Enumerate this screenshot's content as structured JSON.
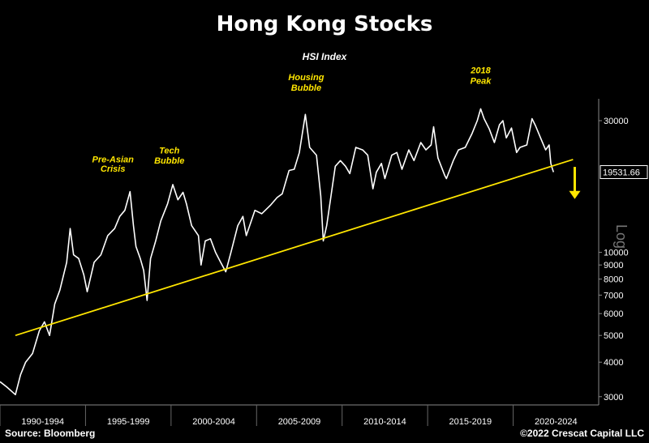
{
  "chart_data": {
    "type": "line",
    "title": "Hong Kong Stocks",
    "subtitle": "HSI Index",
    "scale": "log",
    "ylabel": "Log",
    "ylim": [
      2800,
      36000
    ],
    "xlim": [
      1990.0,
      2025.0
    ],
    "y_ticks": [
      3000,
      4000,
      5000,
      6000,
      7000,
      8000,
      9000,
      10000,
      30000
    ],
    "x_tick_labels": [
      "1990-1994",
      "1995-1999",
      "2000-2004",
      "2005-2009",
      "2010-2014",
      "2015-2019",
      "2020-2024"
    ],
    "x_tick_starts": [
      1990,
      1995,
      2000,
      2005,
      2010,
      2015,
      2020
    ],
    "last_value_label": "19531.66",
    "last_value": 19531.66,
    "series": [
      {
        "values": [
          [
            1990.0,
            3400
          ],
          [
            1990.4,
            3250
          ],
          [
            1990.9,
            3050
          ],
          [
            1991.2,
            3600
          ],
          [
            1991.5,
            4000
          ],
          [
            1991.9,
            4300
          ],
          [
            1992.3,
            5200
          ],
          [
            1992.6,
            5600
          ],
          [
            1992.9,
            5000
          ],
          [
            1993.2,
            6500
          ],
          [
            1993.5,
            7300
          ],
          [
            1993.9,
            9200
          ],
          [
            1994.1,
            12200
          ],
          [
            1994.3,
            9800
          ],
          [
            1994.6,
            9500
          ],
          [
            1994.9,
            8300
          ],
          [
            1995.1,
            7200
          ],
          [
            1995.5,
            9200
          ],
          [
            1995.9,
            9800
          ],
          [
            1996.3,
            11500
          ],
          [
            1996.7,
            12200
          ],
          [
            1997.0,
            13500
          ],
          [
            1997.3,
            14200
          ],
          [
            1997.6,
            16600
          ],
          [
            1997.8,
            12500
          ],
          [
            1997.95,
            10500
          ],
          [
            1998.2,
            9500
          ],
          [
            1998.4,
            8600
          ],
          [
            1998.6,
            6700
          ],
          [
            1998.8,
            9500
          ],
          [
            1999.1,
            11000
          ],
          [
            1999.4,
            13000
          ],
          [
            1999.8,
            15000
          ],
          [
            2000.1,
            17600
          ],
          [
            2000.4,
            15500
          ],
          [
            2000.7,
            16500
          ],
          [
            2000.9,
            15000
          ],
          [
            2001.2,
            12500
          ],
          [
            2001.6,
            11500
          ],
          [
            2001.75,
            9000
          ],
          [
            2002.0,
            11000
          ],
          [
            2002.3,
            11200
          ],
          [
            2002.6,
            10000
          ],
          [
            2002.9,
            9200
          ],
          [
            2003.2,
            8500
          ],
          [
            2003.5,
            10000
          ],
          [
            2003.9,
            12500
          ],
          [
            2004.2,
            13500
          ],
          [
            2004.4,
            11500
          ],
          [
            2004.9,
            14200
          ],
          [
            2005.3,
            13800
          ],
          [
            2005.8,
            14800
          ],
          [
            2006.2,
            15800
          ],
          [
            2006.5,
            16300
          ],
          [
            2006.9,
            19800
          ],
          [
            2007.2,
            20000
          ],
          [
            2007.5,
            23000
          ],
          [
            2007.85,
            31600
          ],
          [
            2008.1,
            24000
          ],
          [
            2008.5,
            22500
          ],
          [
            2008.75,
            16000
          ],
          [
            2008.9,
            11000
          ],
          [
            2009.1,
            12500
          ],
          [
            2009.35,
            16000
          ],
          [
            2009.6,
            20500
          ],
          [
            2009.9,
            21500
          ],
          [
            2010.2,
            20500
          ],
          [
            2010.45,
            19300
          ],
          [
            2010.8,
            24000
          ],
          [
            2011.2,
            23500
          ],
          [
            2011.5,
            22500
          ],
          [
            2011.8,
            17000
          ],
          [
            2012.0,
            19500
          ],
          [
            2012.3,
            21000
          ],
          [
            2012.5,
            18500
          ],
          [
            2012.9,
            22500
          ],
          [
            2013.2,
            23000
          ],
          [
            2013.5,
            20000
          ],
          [
            2013.9,
            23500
          ],
          [
            2014.2,
            21500
          ],
          [
            2014.6,
            25000
          ],
          [
            2014.9,
            23500
          ],
          [
            2015.2,
            24500
          ],
          [
            2015.35,
            28500
          ],
          [
            2015.6,
            22000
          ],
          [
            2016.0,
            19000
          ],
          [
            2016.1,
            18500
          ],
          [
            2016.5,
            21500
          ],
          [
            2016.8,
            23500
          ],
          [
            2017.2,
            24000
          ],
          [
            2017.6,
            27000
          ],
          [
            2017.9,
            30000
          ],
          [
            2018.1,
            33100
          ],
          [
            2018.3,
            30500
          ],
          [
            2018.6,
            28000
          ],
          [
            2018.9,
            25000
          ],
          [
            2019.2,
            29000
          ],
          [
            2019.4,
            30000
          ],
          [
            2019.6,
            26000
          ],
          [
            2019.9,
            28200
          ],
          [
            2020.2,
            23000
          ],
          [
            2020.4,
            24000
          ],
          [
            2020.8,
            24500
          ],
          [
            2021.1,
            30500
          ],
          [
            2021.3,
            28800
          ],
          [
            2021.6,
            26000
          ],
          [
            2021.9,
            23500
          ],
          [
            2022.1,
            24500
          ],
          [
            2022.2,
            21000
          ],
          [
            2022.3,
            20000
          ],
          [
            2022.36,
            19531.66
          ]
        ]
      }
    ],
    "trendline": [
      [
        1990.9,
        5000
      ],
      [
        2023.5,
        21700
      ]
    ],
    "annotations": [
      {
        "label": "Pre-Asian",
        "x": 1996.6,
        "y": 21200
      },
      {
        "label": "Crisis",
        "x": 1996.6,
        "y": 19600
      },
      {
        "label": "Tech",
        "x": 1999.9,
        "y": 22800
      },
      {
        "label": "Bubble",
        "x": 1999.9,
        "y": 21000
      },
      {
        "label": "Housing",
        "x": 2007.9,
        "y": 42000
      },
      {
        "label": "Bubble",
        "x": 2007.9,
        "y": 38500
      },
      {
        "label": "2018",
        "x": 2018.1,
        "y": 44500
      },
      {
        "label": "Peak",
        "x": 2018.1,
        "y": 40800
      }
    ],
    "arrow": {
      "x": 2023.6,
      "y_from": 20400,
      "y_to": 15600
    }
  },
  "footer": {
    "source": "Source: Bloomberg",
    "copyright": "©2022 Crescat Capital LLC"
  }
}
